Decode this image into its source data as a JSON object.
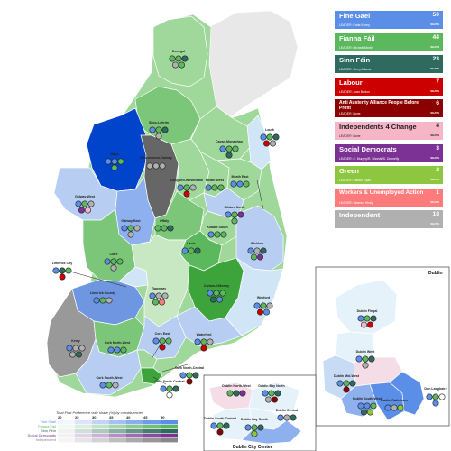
{
  "parties": [
    {
      "id": "fg",
      "name": "Fine Gael",
      "leader": "LEADER: Enda Kenny",
      "seats": "50",
      "seats_label": "SEATS",
      "color": "#5b8ee6",
      "dark": false
    },
    {
      "id": "ff",
      "name": "Fianna Fáil",
      "leader": "LEADER: Micheál Martin",
      "seats": "44",
      "seats_label": "SEATS",
      "color": "#5cb85c",
      "dark": false
    },
    {
      "id": "sf",
      "name": "Sinn Féin",
      "leader": "LEADER: Gerry Adams",
      "seats": "23",
      "seats_label": "SEATS",
      "color": "#2e6b5e",
      "dark": false
    },
    {
      "id": "lab",
      "name": "Labour",
      "leader": "LEADER: Joan Burton",
      "seats": "7",
      "seats_label": "SEATS",
      "color": "#cc0000",
      "dark": false
    },
    {
      "id": "aaa",
      "name": "Anti Austerity Alliance People Before Profit",
      "leader": "LEADER: None",
      "seats": "6",
      "seats_label": "SEATS",
      "color": "#8b0000",
      "dark": false
    },
    {
      "id": "i4c",
      "name": "Independents 4 Change",
      "leader": "LEADER: None",
      "seats": "4",
      "seats_label": "SEATS",
      "color": "#f7b6c8",
      "dark": true
    },
    {
      "id": "sd",
      "name": "Social Democrats",
      "leader": "LEADER: C. Murphy/R. Shortall/S. Donnelly",
      "seats": "3",
      "seats_label": "SEATS",
      "color": "#7b3294",
      "dark": false
    },
    {
      "id": "gp",
      "name": "Green",
      "leader": "LEADER: Eamon Ryan",
      "seats": "2",
      "seats_label": "SEATS",
      "color": "#8dc63f",
      "dark": false
    },
    {
      "id": "wua",
      "name": "Workers & Unemployed Action",
      "leader": "LEADER: Séamus Healy",
      "seats": "1",
      "seats_label": "SEATS",
      "color": "#ff7b7b",
      "dark": false
    },
    {
      "id": "ind",
      "name": "Independent",
      "leader": "",
      "seats": "18",
      "seats_label": "SEATS",
      "color": "#b0b0b0",
      "dark": false
    }
  ],
  "constituencies": [
    {
      "name": "Donegal",
      "color": "#9fd89a"
    },
    {
      "name": "Sligo-Leitrim",
      "color": "#7cc67a"
    },
    {
      "name": "Cavan-Monaghan",
      "color": "#9fd89a"
    },
    {
      "name": "Louth",
      "color": "#d0e6f7"
    },
    {
      "name": "Mayo",
      "color": "#0044cc"
    },
    {
      "name": "Roscommon-Galway",
      "color": "#666666"
    },
    {
      "name": "Longford-Westmeath",
      "color": "#9fd89a"
    },
    {
      "name": "Meath West",
      "color": "#9fd89a"
    },
    {
      "name": "Meath East",
      "color": "#9fd89a"
    },
    {
      "name": "Galway West",
      "color": "#b7cef2"
    },
    {
      "name": "Galway East",
      "color": "#8fb0ee"
    },
    {
      "name": "Offaly",
      "color": "#7cc67a"
    },
    {
      "name": "Kildare North",
      "color": "#b7cef2"
    },
    {
      "name": "Kildare South",
      "color": "#9fd89a"
    },
    {
      "name": "Laois",
      "color": "#5cb85c"
    },
    {
      "name": "Wicklow",
      "color": "#b7cef2"
    },
    {
      "name": "Clare",
      "color": "#7cc67a"
    },
    {
      "name": "Limerick City",
      "color": "#d0e6f7"
    },
    {
      "name": "Limerick County",
      "color": "#6f96e0"
    },
    {
      "name": "Tipperary",
      "color": "#c8e8c4"
    },
    {
      "name": "Carlow-Kilkenny",
      "color": "#3da33b"
    },
    {
      "name": "Wexford",
      "color": "#d0e6f7"
    },
    {
      "name": "Kerry",
      "color": "#999999"
    },
    {
      "name": "Cork East",
      "color": "#b7cef2"
    },
    {
      "name": "Waterford",
      "color": "#b7cef2"
    },
    {
      "name": "Cork North-West",
      "color": "#7cc67a"
    },
    {
      "name": "Cork North-Central",
      "color": "#9fd89a"
    },
    {
      "name": "Cork South-West",
      "color": "#b7cef2"
    },
    {
      "name": "Cork South-Central",
      "color": "#3da33b"
    }
  ],
  "dublin": {
    "title": "Dublin",
    "constituencies": [
      {
        "name": "Dublin Fingal",
        "color": "#e6f2fa"
      },
      {
        "name": "Dublin West",
        "color": "#e6f2fa"
      },
      {
        "name": "Dublin Mid-West",
        "color": "#c8dbf5"
      },
      {
        "name": "Dublin South-West",
        "color": "#8fb0ee"
      },
      {
        "name": "Dublin Rathdown",
        "color": "#5b8ee6"
      },
      {
        "name": "Dún Laoghaire",
        "color": "#5b8ee6"
      }
    ]
  },
  "dublin_center": {
    "title": "Dublin City Center",
    "constituencies": [
      {
        "name": "Dublin North-West",
        "color": "#f5dde8"
      },
      {
        "name": "Dublin Bay North",
        "color": "#e6f2fa"
      },
      {
        "name": "Dublin Central",
        "color": "#e6f2fa"
      },
      {
        "name": "Dublin South-Central",
        "color": "#e6f2fa"
      },
      {
        "name": "Dublin Bay South",
        "color": "#8fb0ee"
      }
    ]
  },
  "vote_scale": {
    "title": "Total First Preference vote share (%) by constituencies",
    "ticks": [
      "20",
      "25",
      "30",
      "35",
      "40",
      "45",
      "50"
    ],
    "rows": [
      {
        "name": "Fine Gael",
        "color": "#5b8ee6"
      },
      {
        "name": "Fianna Fáil",
        "color": "#5cb85c"
      },
      {
        "name": "Sinn Féin",
        "color": "#2e6b5e"
      },
      {
        "name": "Social Democrats",
        "color": "#7b3294"
      },
      {
        "name": "Independent",
        "color": "#888888"
      }
    ]
  },
  "seat_colors": {
    "fg": "#5b8ee6",
    "ff": "#5cb85c",
    "sf": "#2e6b5e",
    "lab": "#cc0000",
    "aaa": "#8b0000",
    "i4c": "#f7b6c8",
    "sd": "#7b3294",
    "gp": "#8dc63f",
    "wua": "#ff7b7b",
    "ind": "#b0b0b0",
    "ceann": "#ffffff"
  }
}
